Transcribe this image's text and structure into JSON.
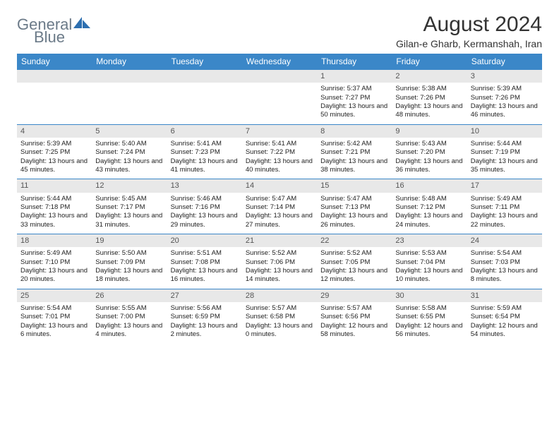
{
  "logo": {
    "text1": "General",
    "text2": "Blue"
  },
  "title": "August 2024",
  "subtitle": "Gilan-e Gharb, Kermanshah, Iran",
  "colors": {
    "header_bg": "#3b87c8",
    "header_text": "#ffffff",
    "daynum_bg": "#e8e8e8",
    "logo_gray": "#6b7a88",
    "logo_blue": "#2d6fb0",
    "border": "#3b87c8"
  },
  "weekdays": [
    "Sunday",
    "Monday",
    "Tuesday",
    "Wednesday",
    "Thursday",
    "Friday",
    "Saturday"
  ],
  "weeks": [
    [
      null,
      null,
      null,
      null,
      {
        "d": "1",
        "sr": "5:37 AM",
        "ss": "7:27 PM",
        "dl": "13 hours and 50 minutes."
      },
      {
        "d": "2",
        "sr": "5:38 AM",
        "ss": "7:26 PM",
        "dl": "13 hours and 48 minutes."
      },
      {
        "d": "3",
        "sr": "5:39 AM",
        "ss": "7:26 PM",
        "dl": "13 hours and 46 minutes."
      }
    ],
    [
      {
        "d": "4",
        "sr": "5:39 AM",
        "ss": "7:25 PM",
        "dl": "13 hours and 45 minutes."
      },
      {
        "d": "5",
        "sr": "5:40 AM",
        "ss": "7:24 PM",
        "dl": "13 hours and 43 minutes."
      },
      {
        "d": "6",
        "sr": "5:41 AM",
        "ss": "7:23 PM",
        "dl": "13 hours and 41 minutes."
      },
      {
        "d": "7",
        "sr": "5:41 AM",
        "ss": "7:22 PM",
        "dl": "13 hours and 40 minutes."
      },
      {
        "d": "8",
        "sr": "5:42 AM",
        "ss": "7:21 PM",
        "dl": "13 hours and 38 minutes."
      },
      {
        "d": "9",
        "sr": "5:43 AM",
        "ss": "7:20 PM",
        "dl": "13 hours and 36 minutes."
      },
      {
        "d": "10",
        "sr": "5:44 AM",
        "ss": "7:19 PM",
        "dl": "13 hours and 35 minutes."
      }
    ],
    [
      {
        "d": "11",
        "sr": "5:44 AM",
        "ss": "7:18 PM",
        "dl": "13 hours and 33 minutes."
      },
      {
        "d": "12",
        "sr": "5:45 AM",
        "ss": "7:17 PM",
        "dl": "13 hours and 31 minutes."
      },
      {
        "d": "13",
        "sr": "5:46 AM",
        "ss": "7:16 PM",
        "dl": "13 hours and 29 minutes."
      },
      {
        "d": "14",
        "sr": "5:47 AM",
        "ss": "7:14 PM",
        "dl": "13 hours and 27 minutes."
      },
      {
        "d": "15",
        "sr": "5:47 AM",
        "ss": "7:13 PM",
        "dl": "13 hours and 26 minutes."
      },
      {
        "d": "16",
        "sr": "5:48 AM",
        "ss": "7:12 PM",
        "dl": "13 hours and 24 minutes."
      },
      {
        "d": "17",
        "sr": "5:49 AM",
        "ss": "7:11 PM",
        "dl": "13 hours and 22 minutes."
      }
    ],
    [
      {
        "d": "18",
        "sr": "5:49 AM",
        "ss": "7:10 PM",
        "dl": "13 hours and 20 minutes."
      },
      {
        "d": "19",
        "sr": "5:50 AM",
        "ss": "7:09 PM",
        "dl": "13 hours and 18 minutes."
      },
      {
        "d": "20",
        "sr": "5:51 AM",
        "ss": "7:08 PM",
        "dl": "13 hours and 16 minutes."
      },
      {
        "d": "21",
        "sr": "5:52 AM",
        "ss": "7:06 PM",
        "dl": "13 hours and 14 minutes."
      },
      {
        "d": "22",
        "sr": "5:52 AM",
        "ss": "7:05 PM",
        "dl": "13 hours and 12 minutes."
      },
      {
        "d": "23",
        "sr": "5:53 AM",
        "ss": "7:04 PM",
        "dl": "13 hours and 10 minutes."
      },
      {
        "d": "24",
        "sr": "5:54 AM",
        "ss": "7:03 PM",
        "dl": "13 hours and 8 minutes."
      }
    ],
    [
      {
        "d": "25",
        "sr": "5:54 AM",
        "ss": "7:01 PM",
        "dl": "13 hours and 6 minutes."
      },
      {
        "d": "26",
        "sr": "5:55 AM",
        "ss": "7:00 PM",
        "dl": "13 hours and 4 minutes."
      },
      {
        "d": "27",
        "sr": "5:56 AM",
        "ss": "6:59 PM",
        "dl": "13 hours and 2 minutes."
      },
      {
        "d": "28",
        "sr": "5:57 AM",
        "ss": "6:58 PM",
        "dl": "13 hours and 0 minutes."
      },
      {
        "d": "29",
        "sr": "5:57 AM",
        "ss": "6:56 PM",
        "dl": "12 hours and 58 minutes."
      },
      {
        "d": "30",
        "sr": "5:58 AM",
        "ss": "6:55 PM",
        "dl": "12 hours and 56 minutes."
      },
      {
        "d": "31",
        "sr": "5:59 AM",
        "ss": "6:54 PM",
        "dl": "12 hours and 54 minutes."
      }
    ]
  ],
  "labels": {
    "sunrise": "Sunrise: ",
    "sunset": "Sunset: ",
    "daylight": "Daylight: "
  }
}
